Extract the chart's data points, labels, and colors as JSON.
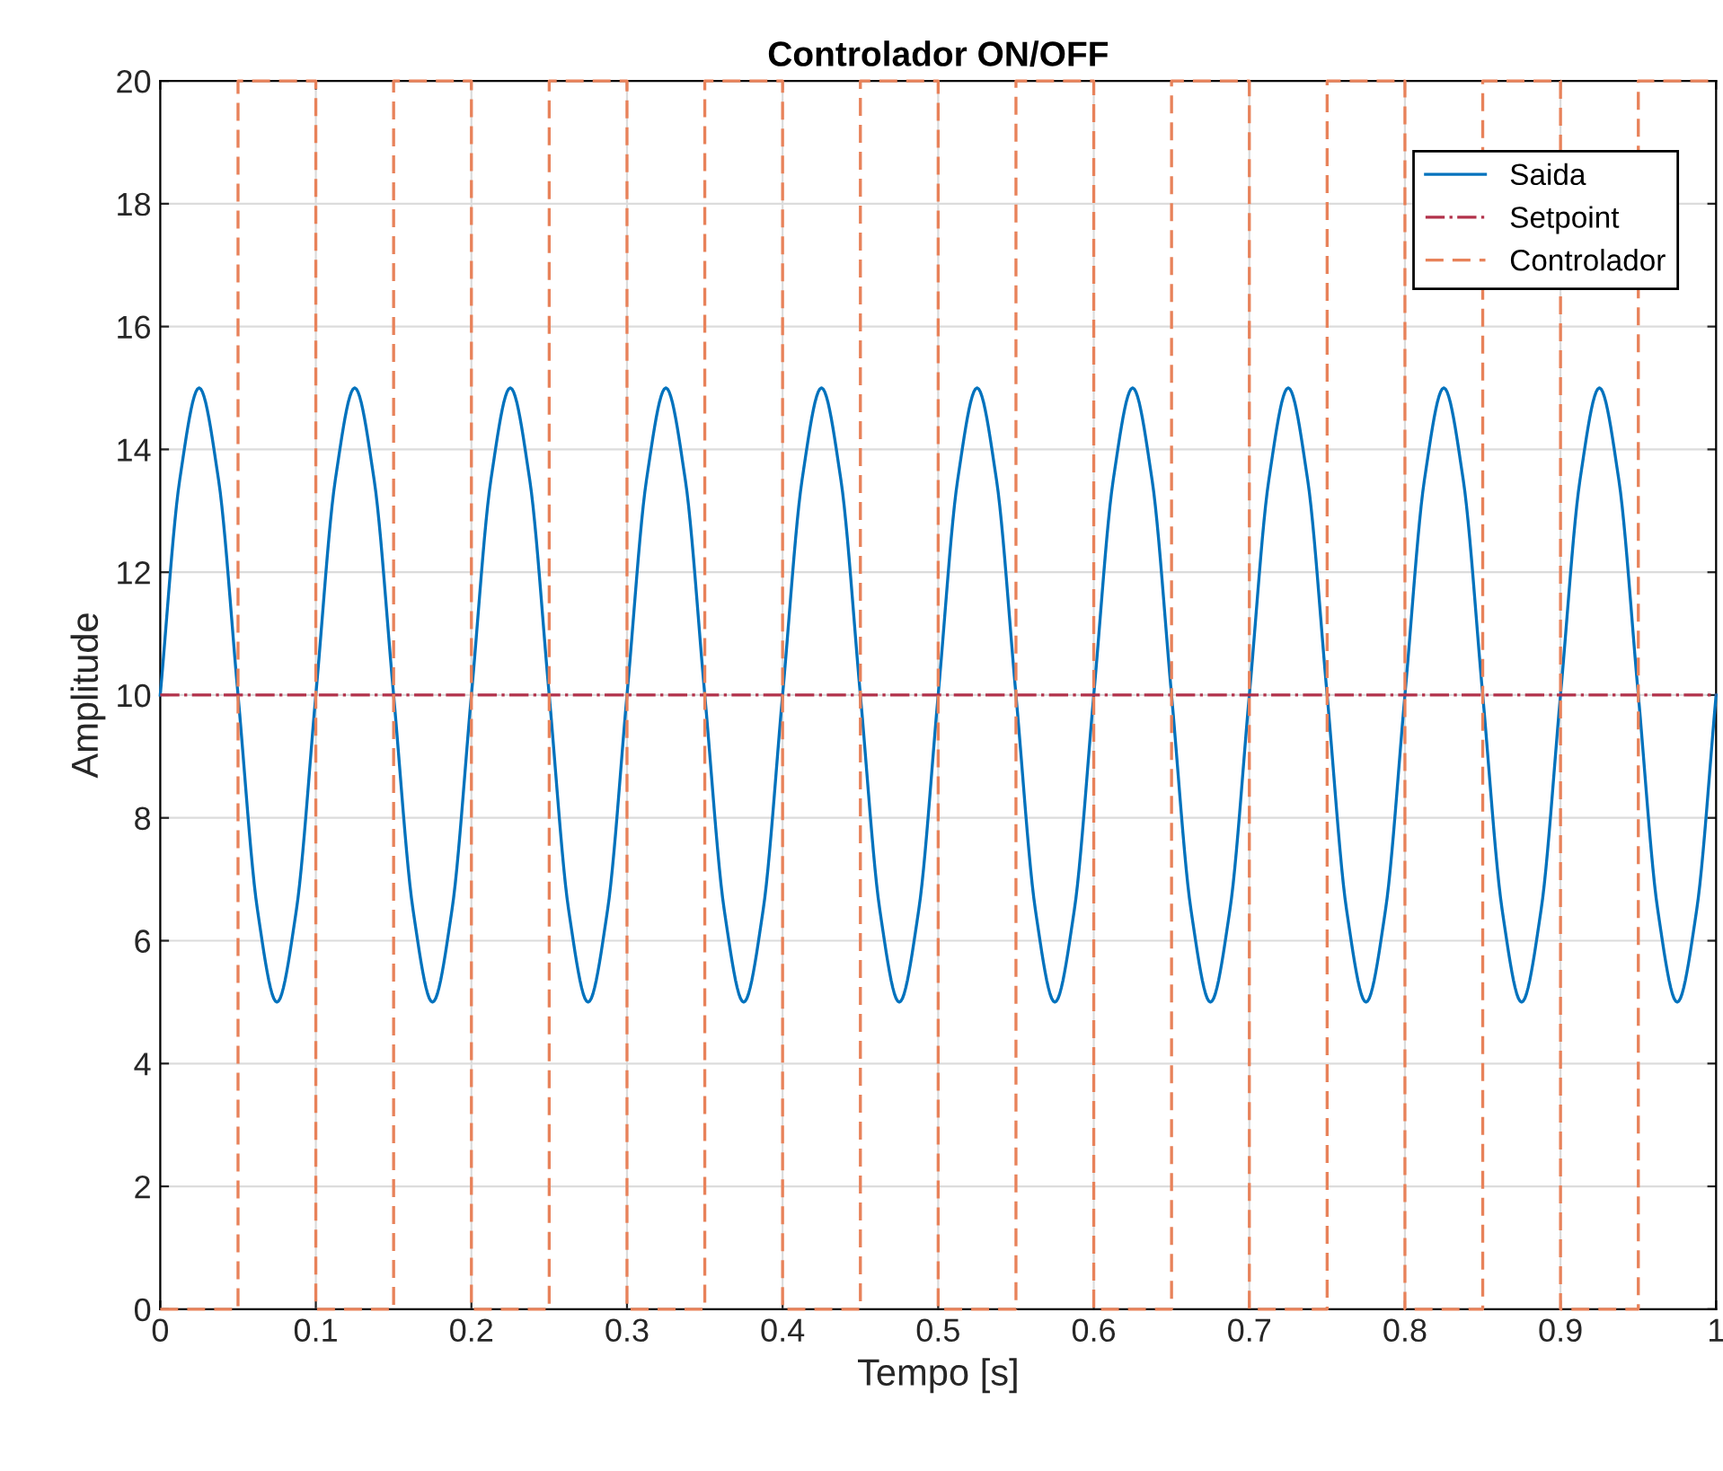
{
  "chart_data": {
    "type": "line",
    "title": "Controlador ON/OFF",
    "xlabel": "Tempo [s]",
    "ylabel": "Amplitude",
    "xlim": [
      0,
      1
    ],
    "xticks": [
      0,
      0.1,
      0.2,
      0.3,
      0.4,
      0.5,
      0.6,
      0.7,
      0.8,
      0.9,
      1
    ],
    "ylim": [
      0,
      20
    ],
    "yticks": [
      0,
      2,
      4,
      6,
      8,
      10,
      12,
      14,
      16,
      18,
      20
    ],
    "grid": true,
    "legend": "top right",
    "series": [
      {
        "name": "Saida",
        "color": "#0072bd",
        "line_style": "solid",
        "x": [
          0,
          0.0125,
          0.025,
          0.0375,
          0.05,
          0.0625,
          0.075,
          0.0875,
          0.1,
          0.1125,
          0.125,
          0.1375,
          0.15,
          0.1625,
          0.175,
          0.1875,
          0.2,
          0.2125,
          0.225,
          0.2375,
          0.25,
          0.2625,
          0.275,
          0.2875,
          0.3,
          0.3125,
          0.325,
          0.3375,
          0.35,
          0.3625,
          0.375,
          0.3875,
          0.4,
          0.4125,
          0.425,
          0.4375,
          0.45,
          0.4625,
          0.475,
          0.4875,
          0.5,
          0.5125,
          0.525,
          0.5375,
          0.55,
          0.5625,
          0.575,
          0.5875,
          0.6,
          0.6125,
          0.625,
          0.6375,
          0.65,
          0.6625,
          0.675,
          0.6875,
          0.7,
          0.7125,
          0.725,
          0.7375,
          0.75,
          0.7625,
          0.775,
          0.7875,
          0.8,
          0.8125,
          0.825,
          0.8375,
          0.85,
          0.8625,
          0.875,
          0.8875,
          0.9,
          0.9125,
          0.925,
          0.9375,
          0.95,
          0.9625,
          0.975,
          0.9875,
          1
        ],
        "values": [
          10,
          13.5,
          15,
          13.5,
          10,
          6.5,
          5,
          6.5,
          10,
          13.5,
          15,
          13.5,
          10,
          6.5,
          5,
          6.5,
          10,
          13.5,
          15,
          13.5,
          10,
          6.5,
          5,
          6.5,
          10,
          13.5,
          15,
          13.5,
          10,
          6.5,
          5,
          6.5,
          10,
          13.5,
          15,
          13.5,
          10,
          6.5,
          5,
          6.5,
          10,
          13.5,
          15,
          13.5,
          10,
          6.5,
          5,
          6.5,
          10,
          13.5,
          15,
          13.5,
          10,
          6.5,
          5,
          6.5,
          10,
          13.5,
          15,
          13.5,
          10,
          6.5,
          5,
          6.5,
          10,
          13.5,
          15,
          13.5,
          10,
          6.5,
          5,
          6.5,
          10,
          13.5,
          15,
          13.5,
          10,
          6.5,
          5,
          6.5,
          10
        ]
      },
      {
        "name": "Setpoint",
        "color": "#b2324b",
        "line_style": "dashdot",
        "x": [
          0,
          1
        ],
        "values": [
          10,
          10
        ]
      },
      {
        "name": "Controlador",
        "color": "#e8825a",
        "line_style": "dashed",
        "x": [
          0,
          0.05,
          0.05,
          0.1,
          0.1,
          0.15,
          0.15,
          0.2,
          0.2,
          0.25,
          0.25,
          0.3,
          0.3,
          0.35,
          0.35,
          0.4,
          0.4,
          0.45,
          0.45,
          0.5,
          0.5,
          0.55,
          0.55,
          0.6,
          0.6,
          0.65,
          0.65,
          0.7,
          0.7,
          0.75,
          0.75,
          0.8,
          0.8,
          0.85,
          0.85,
          0.9,
          0.9,
          0.95,
          0.95,
          1
        ],
        "values": [
          0,
          0,
          20,
          20,
          0,
          0,
          20,
          20,
          0,
          0,
          20,
          20,
          0,
          0,
          20,
          20,
          0,
          0,
          20,
          20,
          0,
          0,
          20,
          20,
          0,
          0,
          20,
          20,
          0,
          0,
          20,
          20,
          0,
          0,
          20,
          20,
          0,
          0,
          20,
          20
        ]
      }
    ]
  }
}
